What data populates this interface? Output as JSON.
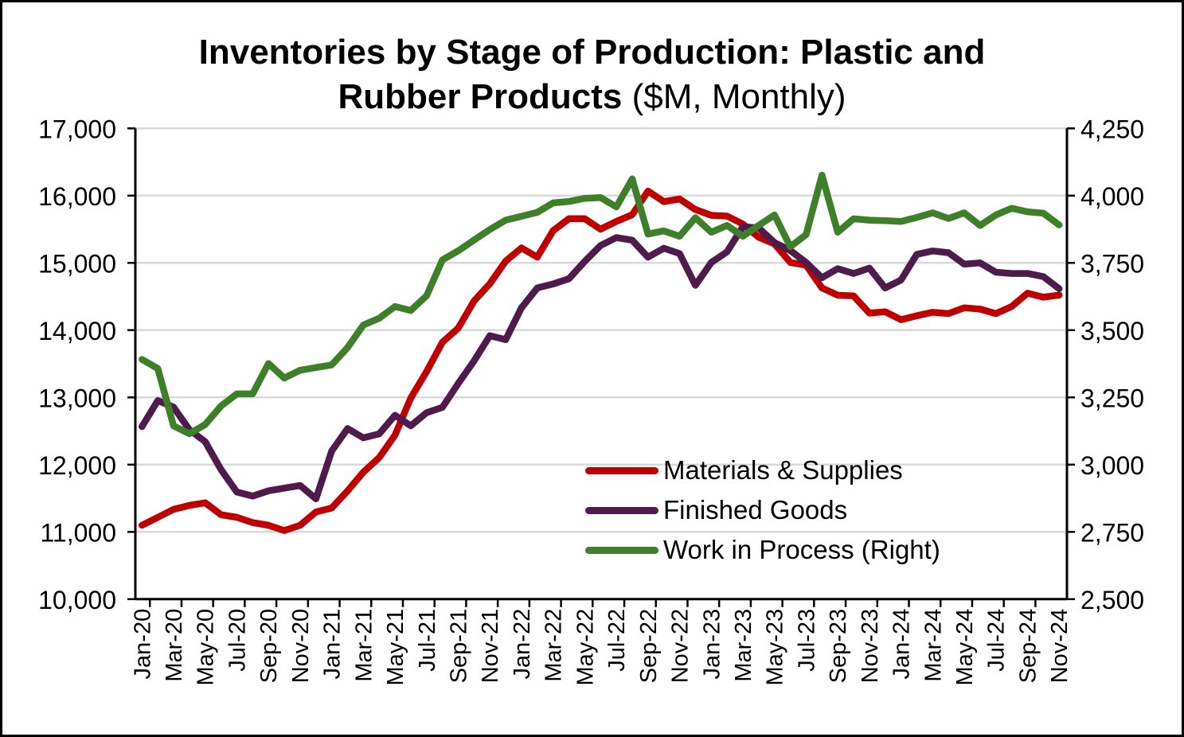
{
  "chart_data": {
    "type": "line",
    "title": "Inventories by Stage of Production: Plastic and Rubber Products",
    "subtitle": "($M, Monthly)",
    "xlabel": "",
    "ylabel_left": "",
    "ylabel_right": "",
    "ylim_left": [
      10000,
      17000
    ],
    "ylim_right": [
      2500,
      4250
    ],
    "yticks_left": [
      "10,000",
      "11,000",
      "12,000",
      "13,000",
      "14,000",
      "15,000",
      "16,000",
      "17,000"
    ],
    "yticks_right": [
      "2,500",
      "2,750",
      "3,000",
      "3,250",
      "3,500",
      "3,750",
      "4,000",
      "4,250"
    ],
    "grid": true,
    "legend_position": "lower-right inside plot",
    "x": [
      "Jan-20",
      "Feb-20",
      "Mar-20",
      "Apr-20",
      "May-20",
      "Jun-20",
      "Jul-20",
      "Aug-20",
      "Sep-20",
      "Oct-20",
      "Nov-20",
      "Dec-20",
      "Jan-21",
      "Feb-21",
      "Mar-21",
      "Apr-21",
      "May-21",
      "Jun-21",
      "Jul-21",
      "Aug-21",
      "Sep-21",
      "Oct-21",
      "Nov-21",
      "Dec-21",
      "Jan-22",
      "Feb-22",
      "Mar-22",
      "Apr-22",
      "May-22",
      "Jun-22",
      "Jul-22",
      "Aug-22",
      "Sep-22",
      "Oct-22",
      "Nov-22",
      "Dec-22",
      "Jan-23",
      "Feb-23",
      "Mar-23",
      "Apr-23",
      "May-23",
      "Jun-23",
      "Jul-23",
      "Aug-23",
      "Sep-23",
      "Oct-23",
      "Nov-23",
      "Dec-23",
      "Jan-24",
      "Feb-24",
      "Mar-24",
      "Apr-24",
      "May-24",
      "Jun-24",
      "Jul-24",
      "Aug-24",
      "Sep-24",
      "Oct-24",
      "Nov-24"
    ],
    "x_tick_labels": [
      "Jan-20",
      "Mar-20",
      "May-20",
      "Jul-20",
      "Sep-20",
      "Nov-20",
      "Jan-21",
      "Mar-21",
      "May-21",
      "Jul-21",
      "Sep-21",
      "Nov-21",
      "Jan-22",
      "Mar-22",
      "May-22",
      "Jul-22",
      "Sep-22",
      "Nov-22",
      "Jan-23",
      "Mar-23",
      "May-23",
      "Jul-23",
      "Sep-23",
      "Nov-23",
      "Jan-24",
      "Mar-24",
      "May-24",
      "Jul-24",
      "Sep-24",
      "Nov-24"
    ],
    "series": [
      {
        "name": "Materials & Supplies",
        "axis": "left",
        "color": "#C00000",
        "values": [
          11098,
          11217,
          11335,
          11394,
          11433,
          11256,
          11217,
          11138,
          11098,
          11020,
          11098,
          11296,
          11355,
          11611,
          11888,
          12104,
          12439,
          12991,
          13385,
          13820,
          14030,
          14434,
          14690,
          15026,
          15223,
          15085,
          15479,
          15657,
          15657,
          15500,
          15617,
          15716,
          16068,
          15911,
          15950,
          15793,
          15708,
          15696,
          15578,
          15381,
          15282,
          15006,
          14966,
          14627,
          14520,
          14509,
          14253,
          14273,
          14155,
          14214,
          14266,
          14246,
          14332,
          14313,
          14246,
          14352,
          14549,
          14490,
          14521
        ]
      },
      {
        "name": "Finished Goods",
        "axis": "left",
        "color": "#4F1A4C",
        "values": [
          12566,
          12953,
          12854,
          12519,
          12341,
          11927,
          11592,
          11533,
          11611,
          11651,
          11690,
          11492,
          12202,
          12537,
          12399,
          12458,
          12734,
          12577,
          12773,
          12852,
          13207,
          13543,
          13917,
          13858,
          14331,
          14627,
          14686,
          14765,
          15022,
          15258,
          15376,
          15337,
          15085,
          15218,
          15139,
          14666,
          15006,
          15164,
          15538,
          15519,
          15302,
          15183,
          15006,
          14780,
          14914,
          14843,
          14922,
          14627,
          14745,
          15127,
          15178,
          15151,
          14981,
          15000,
          14862,
          14843,
          14843,
          14796,
          14615
        ]
      },
      {
        "name": "Work in Process (Right)",
        "axis": "right",
        "color": "#3E7F2A",
        "values": [
          3391,
          3357,
          3144,
          3115,
          3149,
          3218,
          3263,
          3263,
          3376,
          3322,
          3351,
          3361,
          3371,
          3435,
          3519,
          3544,
          3588,
          3573,
          3628,
          3761,
          3795,
          3835,
          3874,
          3909,
          3923,
          3938,
          3973,
          3978,
          3990,
          3993,
          3958,
          4062,
          3857,
          3869,
          3849,
          3918,
          3864,
          3889,
          3849,
          3889,
          3928,
          3810,
          3855,
          4076,
          3864,
          3914,
          3909,
          3907,
          3904,
          3919,
          3936,
          3915,
          3936,
          3889,
          3928,
          3953,
          3940,
          3935,
          3891
        ]
      }
    ]
  },
  "title": {
    "line1": "Inventories by Stage of Production: Plastic and",
    "line2_bold": "Rubber Products",
    "line2_normal": "($M, Monthly)"
  },
  "legend": [
    {
      "label": "Materials & Supplies",
      "color": "#C00000"
    },
    {
      "label": "Finished Goods",
      "color": "#4F1A4C"
    },
    {
      "label": "Work in Process (Right)",
      "color": "#3E7F2A"
    }
  ]
}
